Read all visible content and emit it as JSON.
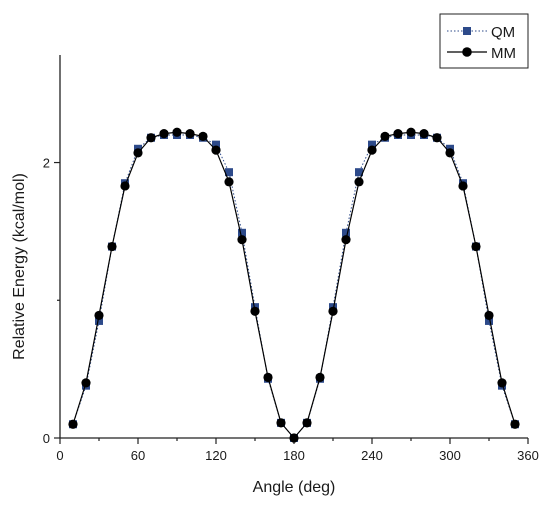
{
  "chart_data": {
    "type": "line",
    "title": "",
    "xlabel": "Angle (deg)",
    "ylabel": "Relative Energy (kcal/mol)",
    "xlim": [
      0,
      360
    ],
    "ylim": [
      0,
      2.2
    ],
    "xticks": [
      0,
      60,
      120,
      180,
      240,
      300,
      360
    ],
    "yticks": [
      0,
      2
    ],
    "grid": false,
    "legend_position": "top-right",
    "x": [
      10,
      20,
      30,
      40,
      50,
      60,
      70,
      80,
      90,
      100,
      110,
      120,
      130,
      140,
      150,
      160,
      170,
      180,
      190,
      200,
      210,
      220,
      230,
      240,
      250,
      260,
      270,
      280,
      290,
      300,
      310,
      320,
      330,
      340,
      350
    ],
    "series": [
      {
        "name": "QM",
        "color": "#2d4a8a",
        "marker": "square",
        "line_style": "dotted",
        "values": [
          0.1,
          0.38,
          0.85,
          1.39,
          1.85,
          2.1,
          2.18,
          2.2,
          2.2,
          2.2,
          2.18,
          2.13,
          1.93,
          1.49,
          0.95,
          0.43,
          0.11,
          0.0,
          0.11,
          0.43,
          0.95,
          1.49,
          1.93,
          2.13,
          2.18,
          2.2,
          2.2,
          2.2,
          2.18,
          2.1,
          1.85,
          1.39,
          0.85,
          0.38,
          0.1
        ]
      },
      {
        "name": "MM",
        "color": "#000000",
        "marker": "circle",
        "line_style": "solid",
        "values": [
          0.1,
          0.4,
          0.89,
          1.39,
          1.83,
          2.07,
          2.18,
          2.21,
          2.22,
          2.21,
          2.19,
          2.09,
          1.86,
          1.44,
          0.92,
          0.44,
          0.11,
          0.0,
          0.11,
          0.44,
          0.92,
          1.44,
          1.86,
          2.09,
          2.19,
          2.21,
          2.22,
          2.21,
          2.18,
          2.07,
          1.83,
          1.39,
          0.89,
          0.4,
          0.1
        ]
      }
    ]
  }
}
